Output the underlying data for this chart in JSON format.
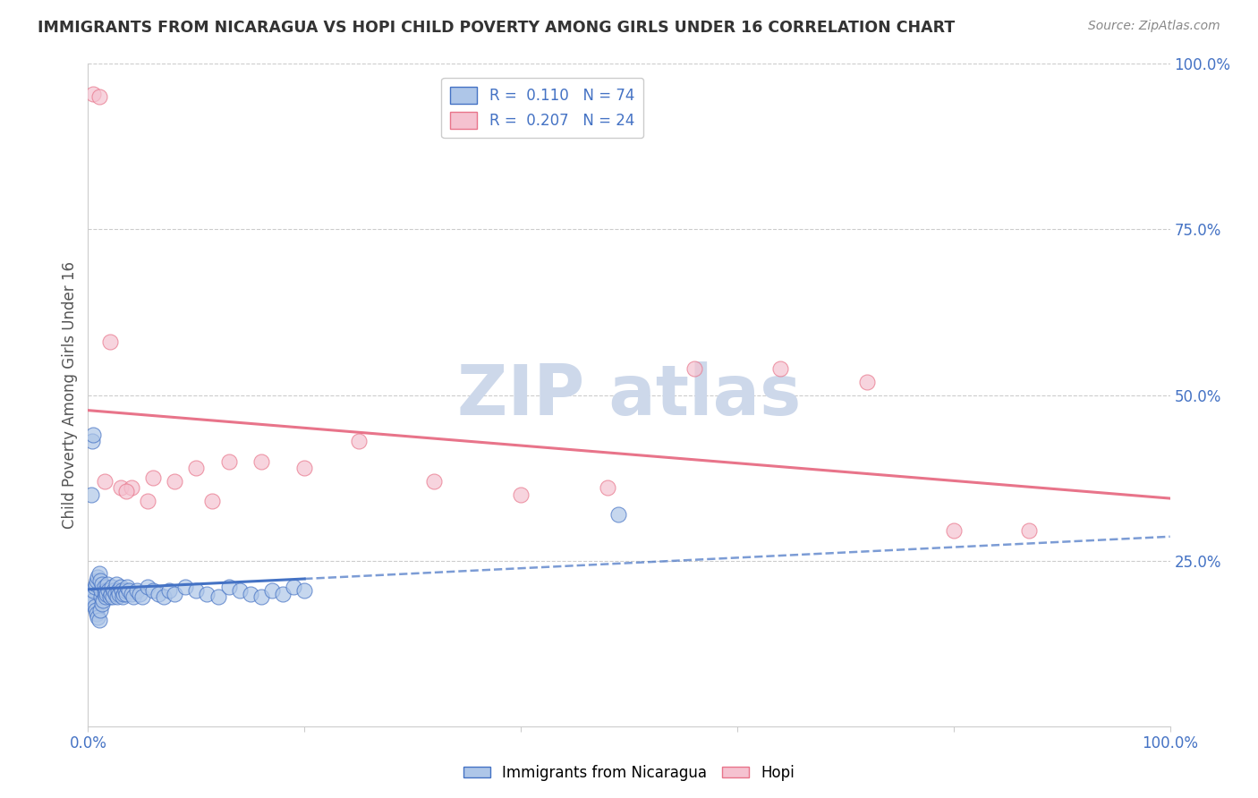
{
  "title": "IMMIGRANTS FROM NICARAGUA VS HOPI CHILD POVERTY AMONG GIRLS UNDER 16 CORRELATION CHART",
  "source": "Source: ZipAtlas.com",
  "ylabel": "Child Poverty Among Girls Under 16",
  "xlim": [
    0.0,
    1.0
  ],
  "ylim": [
    0.0,
    1.0
  ],
  "legend_r_blue": "0.110",
  "legend_n_blue": "74",
  "legend_r_pink": "0.207",
  "legend_n_pink": "24",
  "legend_labels": [
    "Immigrants from Nicaragua",
    "Hopi"
  ],
  "blue_fill": "#aec6e8",
  "pink_fill": "#f5c2d0",
  "blue_edge": "#4472C4",
  "pink_edge": "#E8748A",
  "blue_line_color": "#4472C4",
  "pink_line_color": "#E8748A",
  "tick_color": "#4472C4",
  "watermark_color": "#cdd8ea",
  "grid_color": "#cccccc",
  "title_color": "#333333",
  "source_color": "#888888",
  "ylabel_color": "#555555",
  "blue_scatter_x": [
    0.002,
    0.003,
    0.004,
    0.005,
    0.005,
    0.006,
    0.006,
    0.007,
    0.007,
    0.008,
    0.008,
    0.009,
    0.009,
    0.01,
    0.01,
    0.011,
    0.011,
    0.012,
    0.012,
    0.013,
    0.013,
    0.014,
    0.015,
    0.015,
    0.016,
    0.016,
    0.017,
    0.018,
    0.019,
    0.02,
    0.021,
    0.022,
    0.023,
    0.024,
    0.025,
    0.026,
    0.027,
    0.028,
    0.029,
    0.03,
    0.031,
    0.032,
    0.033,
    0.034,
    0.035,
    0.036,
    0.038,
    0.04,
    0.042,
    0.045,
    0.048,
    0.05,
    0.055,
    0.06,
    0.065,
    0.07,
    0.075,
    0.08,
    0.09,
    0.1,
    0.11,
    0.12,
    0.13,
    0.14,
    0.15,
    0.16,
    0.17,
    0.18,
    0.19,
    0.2,
    0.003,
    0.004,
    0.005,
    0.49
  ],
  "blue_scatter_y": [
    0.2,
    0.185,
    0.195,
    0.19,
    0.205,
    0.18,
    0.21,
    0.175,
    0.215,
    0.17,
    0.22,
    0.165,
    0.225,
    0.16,
    0.23,
    0.175,
    0.22,
    0.195,
    0.205,
    0.185,
    0.215,
    0.19,
    0.2,
    0.21,
    0.195,
    0.205,
    0.2,
    0.215,
    0.205,
    0.195,
    0.2,
    0.21,
    0.195,
    0.205,
    0.2,
    0.215,
    0.195,
    0.205,
    0.2,
    0.21,
    0.205,
    0.195,
    0.2,
    0.205,
    0.2,
    0.21,
    0.205,
    0.2,
    0.195,
    0.205,
    0.2,
    0.195,
    0.21,
    0.205,
    0.2,
    0.195,
    0.205,
    0.2,
    0.21,
    0.205,
    0.2,
    0.195,
    0.21,
    0.205,
    0.2,
    0.195,
    0.205,
    0.2,
    0.21,
    0.205,
    0.35,
    0.43,
    0.44,
    0.32
  ],
  "pink_scatter_x": [
    0.005,
    0.01,
    0.02,
    0.03,
    0.04,
    0.06,
    0.08,
    0.1,
    0.13,
    0.16,
    0.2,
    0.25,
    0.32,
    0.4,
    0.48,
    0.56,
    0.64,
    0.72,
    0.8,
    0.87,
    0.015,
    0.035,
    0.055,
    0.115
  ],
  "pink_scatter_y": [
    0.955,
    0.95,
    0.58,
    0.36,
    0.36,
    0.375,
    0.37,
    0.39,
    0.4,
    0.4,
    0.39,
    0.43,
    0.37,
    0.35,
    0.36,
    0.54,
    0.54,
    0.52,
    0.295,
    0.295,
    0.37,
    0.355,
    0.34,
    0.34
  ]
}
